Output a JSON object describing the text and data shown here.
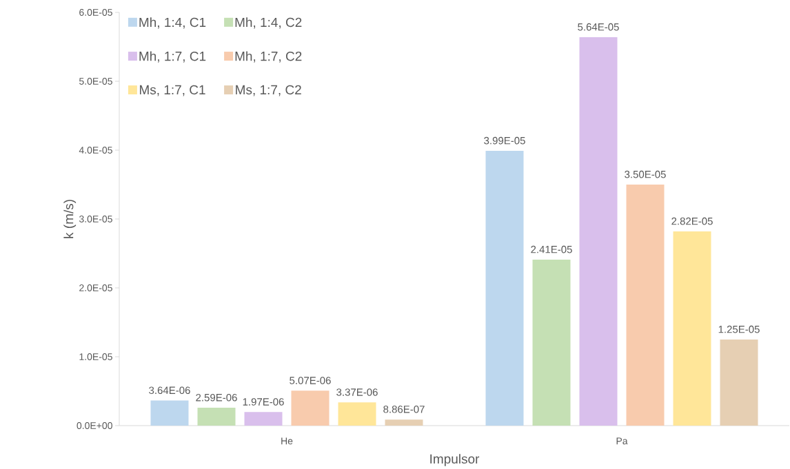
{
  "chart_data": {
    "type": "bar",
    "xlabel": "Impulsor",
    "ylabel": "k (m/s)",
    "categories": [
      "He",
      "Pa"
    ],
    "series": [
      {
        "name": "Mh, 1:4, C1",
        "color": "#bdd7ee",
        "values": [
          3.64e-06,
          3.99e-05
        ],
        "value_labels": [
          "3.64E-06",
          "3.99E-05"
        ]
      },
      {
        "name": "Mh, 1:4, C2",
        "color": "#c5e0b4",
        "values": [
          2.59e-06,
          2.41e-05
        ],
        "value_labels": [
          "2.59E-06",
          "2.41E-05"
        ]
      },
      {
        "name": "Mh, 1:7, C1",
        "color": "#d9bfec",
        "values": [
          1.97e-06,
          5.64e-05
        ],
        "value_labels": [
          "1.97E-06",
          "5.64E-05"
        ]
      },
      {
        "name": "Mh, 1:7, C2",
        "color": "#f8cbad",
        "values": [
          5.07e-06,
          3.5e-05
        ],
        "value_labels": [
          "5.07E-06",
          "3.50E-05"
        ]
      },
      {
        "name": "Ms, 1:7, C1",
        "color": "#ffe699",
        "values": [
          3.37e-06,
          2.82e-05
        ],
        "value_labels": [
          "3.37E-06",
          "2.82E-05"
        ]
      },
      {
        "name": "Ms, 1:7, C2",
        "color": "#e6cfb3",
        "values": [
          8.86e-07,
          1.25e-05
        ],
        "value_labels": [
          "8.86E-07",
          "1.25E-05"
        ]
      }
    ],
    "ylim": [
      0,
      6e-05
    ],
    "yticks": [
      {
        "value": 0,
        "label": "0.0E+00"
      },
      {
        "value": 1e-05,
        "label": "1.0E-05"
      },
      {
        "value": 2e-05,
        "label": "2.0E-05"
      },
      {
        "value": 3e-05,
        "label": "3.0E-05"
      },
      {
        "value": 4e-05,
        "label": "4.0E-05"
      },
      {
        "value": 5e-05,
        "label": "5.0E-05"
      },
      {
        "value": 6e-05,
        "label": "6.0E-05"
      }
    ],
    "grid": false,
    "legend": "top left"
  }
}
